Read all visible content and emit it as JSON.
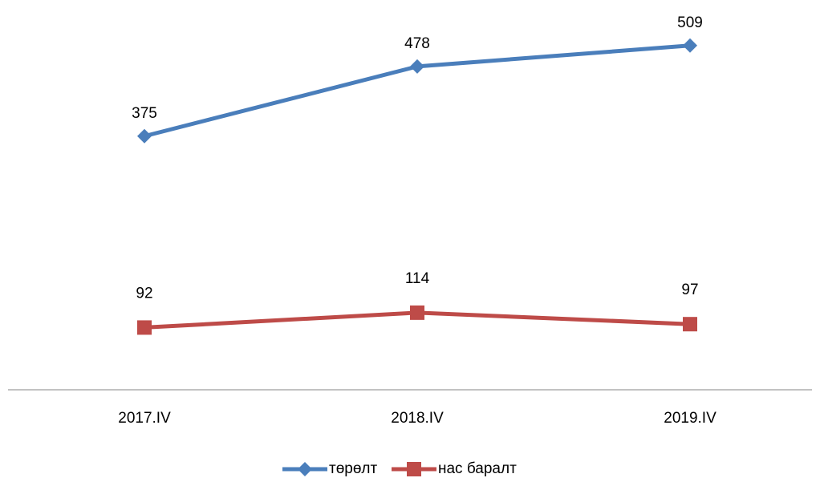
{
  "chart_data": {
    "type": "line",
    "categories": [
      "2017.IV",
      "2018.IV",
      "2019.IV"
    ],
    "series": [
      {
        "name": "төрөлт",
        "color": "#4a7ebb",
        "marker": "diamond",
        "values": [
          375,
          478,
          509
        ]
      },
      {
        "name": "нас баралт",
        "color": "#be4b48",
        "marker": "square",
        "values": [
          92,
          114,
          97
        ]
      }
    ],
    "ylim": [
      0,
      600
    ],
    "legend": "bottom"
  }
}
